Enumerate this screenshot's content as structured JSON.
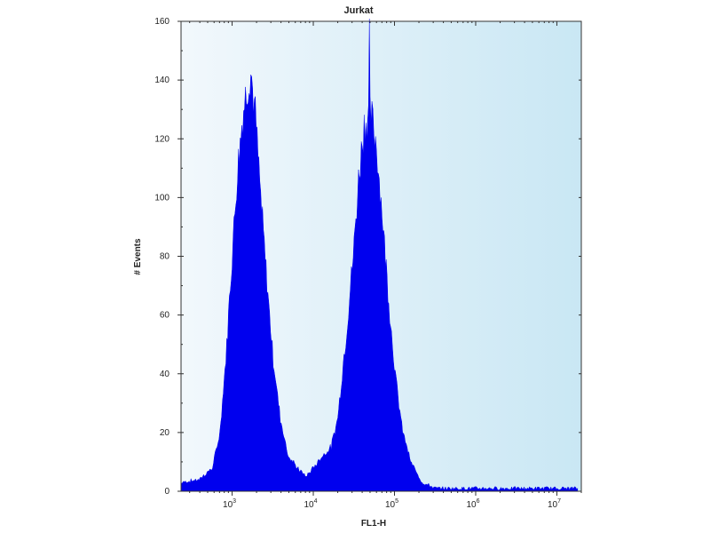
{
  "chart_data": {
    "type": "area",
    "title": "Jurkat",
    "xlabel": "FL1-H",
    "ylabel": "# Events",
    "x_scale": "log",
    "xlim": [
      235,
      20000000
    ],
    "ylim": [
      0,
      160
    ],
    "yticks": [
      0,
      20,
      40,
      60,
      80,
      100,
      120,
      140,
      160
    ],
    "xticks": [
      {
        "value": 1000,
        "base": "10",
        "exp": "3"
      },
      {
        "value": 10000,
        "base": "10",
        "exp": "4"
      },
      {
        "value": 100000,
        "base": "10",
        "exp": "5"
      },
      {
        "value": 1000000,
        "base": "10",
        "exp": "6"
      },
      {
        "value": 10000000,
        "base": "10",
        "exp": "7"
      }
    ],
    "grid": false,
    "colors": {
      "fill": "#0000ee",
      "background_left": "#f2f8fc",
      "background_right": "#c9e7f4"
    },
    "series": [
      {
        "points": [
          [
            235,
            3
          ],
          [
            392,
            4
          ],
          [
            575,
            8
          ],
          [
            708,
            20
          ],
          [
            837,
            45
          ],
          [
            1000,
            80
          ],
          [
            1170,
            110
          ],
          [
            1350,
            128
          ],
          [
            1580,
            140
          ],
          [
            1700,
            143
          ],
          [
            1930,
            128
          ],
          [
            2250,
            100
          ],
          [
            2620,
            75
          ],
          [
            3200,
            45
          ],
          [
            3920,
            25
          ],
          [
            4920,
            12
          ],
          [
            6330,
            8
          ],
          [
            8150,
            5
          ],
          [
            10000,
            8
          ],
          [
            12900,
            12
          ],
          [
            16600,
            15
          ],
          [
            20000,
            25
          ],
          [
            25800,
            55
          ],
          [
            31000,
            80
          ],
          [
            37000,
            110
          ],
          [
            42300,
            125
          ],
          [
            47900,
            128
          ],
          [
            49000,
            152
          ],
          [
            50000,
            128
          ],
          [
            51500,
            128
          ],
          [
            60000,
            118
          ],
          [
            70300,
            95
          ],
          [
            85000,
            65
          ],
          [
            102000,
            40
          ],
          [
            123000,
            22
          ],
          [
            158000,
            10
          ],
          [
            220000,
            3
          ],
          [
            322000,
            1
          ],
          [
            1900000,
            1
          ],
          [
            18000000,
            1
          ]
        ]
      }
    ]
  }
}
